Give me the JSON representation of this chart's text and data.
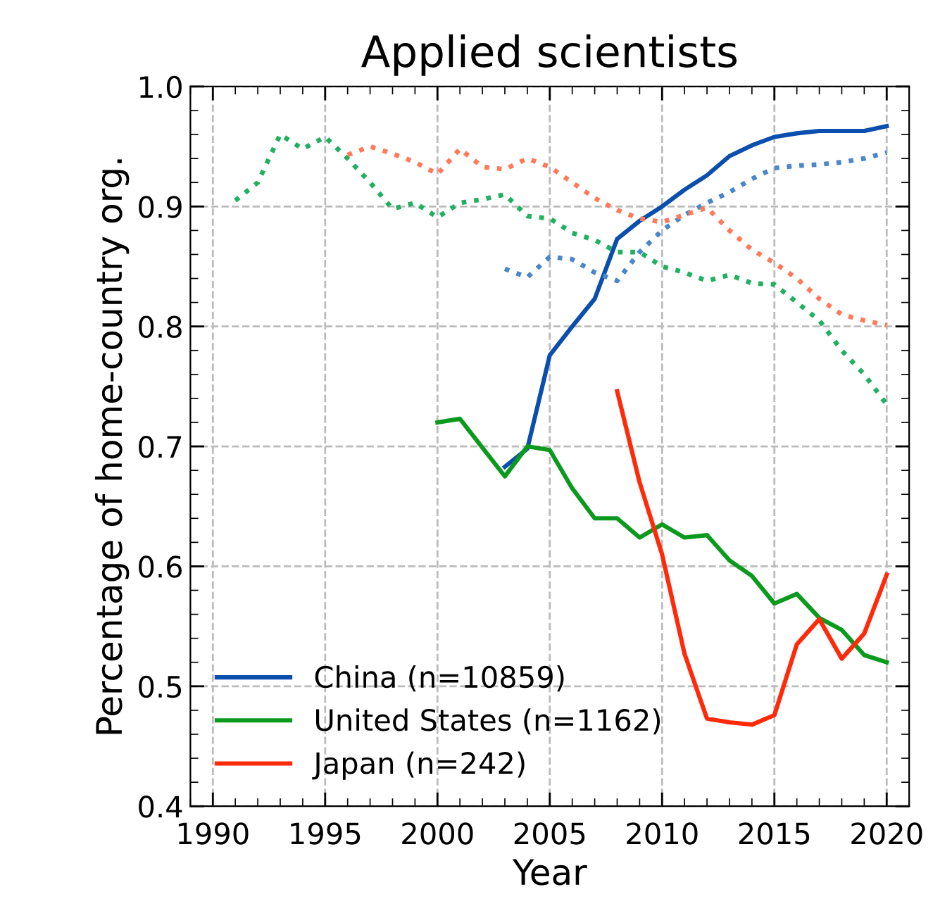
{
  "chart_data": {
    "type": "line",
    "title": "Applied scientists",
    "xlabel": "Year",
    "ylabel": "Percentage of home-country org.",
    "xlim": [
      1989,
      2021
    ],
    "xticks": [
      1990,
      1995,
      2000,
      2005,
      2010,
      2015,
      2020
    ],
    "ylim": [
      0.4,
      1.0
    ],
    "yticks": [
      0.4,
      0.5,
      0.6,
      0.7,
      0.8,
      0.9,
      {
        "value": 1,
        "label": "1.0"
      }
    ],
    "grid": true,
    "legend": "bottom left",
    "series": [
      {
        "name": "China (n=10859)",
        "color": "#0a4fad",
        "line_style": "solid",
        "x": [
          2003,
          2004,
          2005,
          2006,
          2007,
          2008,
          2009,
          2010,
          2011,
          2012,
          2013,
          2014,
          2015,
          2016,
          2017,
          2018,
          2019,
          2020
        ],
        "values": [
          0.683,
          0.698,
          0.776,
          0.8,
          0.823,
          0.873,
          0.888,
          0.9,
          0.914,
          0.926,
          0.942,
          0.951,
          0.958,
          0.961,
          0.963,
          0.963,
          0.963,
          0.967
        ]
      },
      {
        "name": "United States (n=1162)",
        "color": "#0c9a1e",
        "line_style": "solid",
        "x": [
          2000,
          2001,
          2002,
          2003,
          2004,
          2005,
          2006,
          2007,
          2008,
          2009,
          2010,
          2011,
          2012,
          2013,
          2014,
          2015,
          2016,
          2017,
          2018,
          2019,
          2020
        ],
        "values": [
          0.72,
          0.723,
          0.699,
          0.675,
          0.7,
          0.697,
          0.665,
          0.64,
          0.64,
          0.624,
          0.635,
          0.624,
          0.626,
          0.605,
          0.592,
          0.569,
          0.577,
          0.557,
          0.547,
          0.526,
          0.52
        ]
      },
      {
        "name": "Japan (n=242)",
        "color": "#ff2a0a",
        "line_style": "solid",
        "x": [
          2008,
          2009,
          2010,
          2011,
          2012,
          2013,
          2014,
          2015,
          2016,
          2017,
          2018,
          2019,
          2020
        ],
        "values": [
          0.746,
          0.67,
          0.61,
          0.527,
          0.473,
          0.47,
          0.468,
          0.476,
          0.535,
          0.556,
          0.523,
          0.544,
          0.593
        ]
      },
      {
        "color": "#4a86c8",
        "line_style": "dotted",
        "x": [
          2003,
          2004,
          2005,
          2006,
          2007,
          2008,
          2009,
          2010,
          2011,
          2012,
          2013,
          2014,
          2015,
          2016,
          2017,
          2018,
          2019,
          2020
        ],
        "values": [
          0.848,
          0.841,
          0.858,
          0.856,
          0.845,
          0.838,
          0.862,
          0.88,
          0.893,
          0.903,
          0.912,
          0.923,
          0.932,
          0.934,
          0.935,
          0.937,
          0.94,
          0.945
        ]
      },
      {
        "color": "#20b060",
        "line_style": "dotted",
        "x": [
          1991,
          1992,
          1993,
          1994,
          1995,
          1996,
          1997,
          1998,
          1999,
          2000,
          2001,
          2002,
          2003,
          2004,
          2005,
          2006,
          2007,
          2008,
          2009,
          2010,
          2011,
          2012,
          2013,
          2014,
          2015,
          2016,
          2017,
          2018,
          2019,
          2020
        ],
        "values": [
          0.905,
          0.92,
          0.96,
          0.948,
          0.958,
          0.94,
          0.92,
          0.898,
          0.903,
          0.891,
          0.903,
          0.906,
          0.91,
          0.892,
          0.89,
          0.878,
          0.872,
          0.862,
          0.862,
          0.85,
          0.845,
          0.838,
          0.843,
          0.836,
          0.835,
          0.82,
          0.805,
          0.78,
          0.76,
          0.735
        ]
      },
      {
        "color": "#ff7a5a",
        "line_style": "dotted",
        "x": [
          1996,
          1997,
          1998,
          1999,
          2000,
          2001,
          2002,
          2003,
          2004,
          2005,
          2006,
          2007,
          2008,
          2009,
          2010,
          2011,
          2012,
          2013,
          2014,
          2015,
          2016,
          2017,
          2018,
          2019,
          2020
        ],
        "values": [
          0.943,
          0.95,
          0.944,
          0.937,
          0.927,
          0.948,
          0.933,
          0.931,
          0.94,
          0.933,
          0.92,
          0.907,
          0.897,
          0.89,
          0.887,
          0.893,
          0.899,
          0.88,
          0.864,
          0.853,
          0.84,
          0.823,
          0.81,
          0.805,
          0.801
        ]
      }
    ]
  }
}
